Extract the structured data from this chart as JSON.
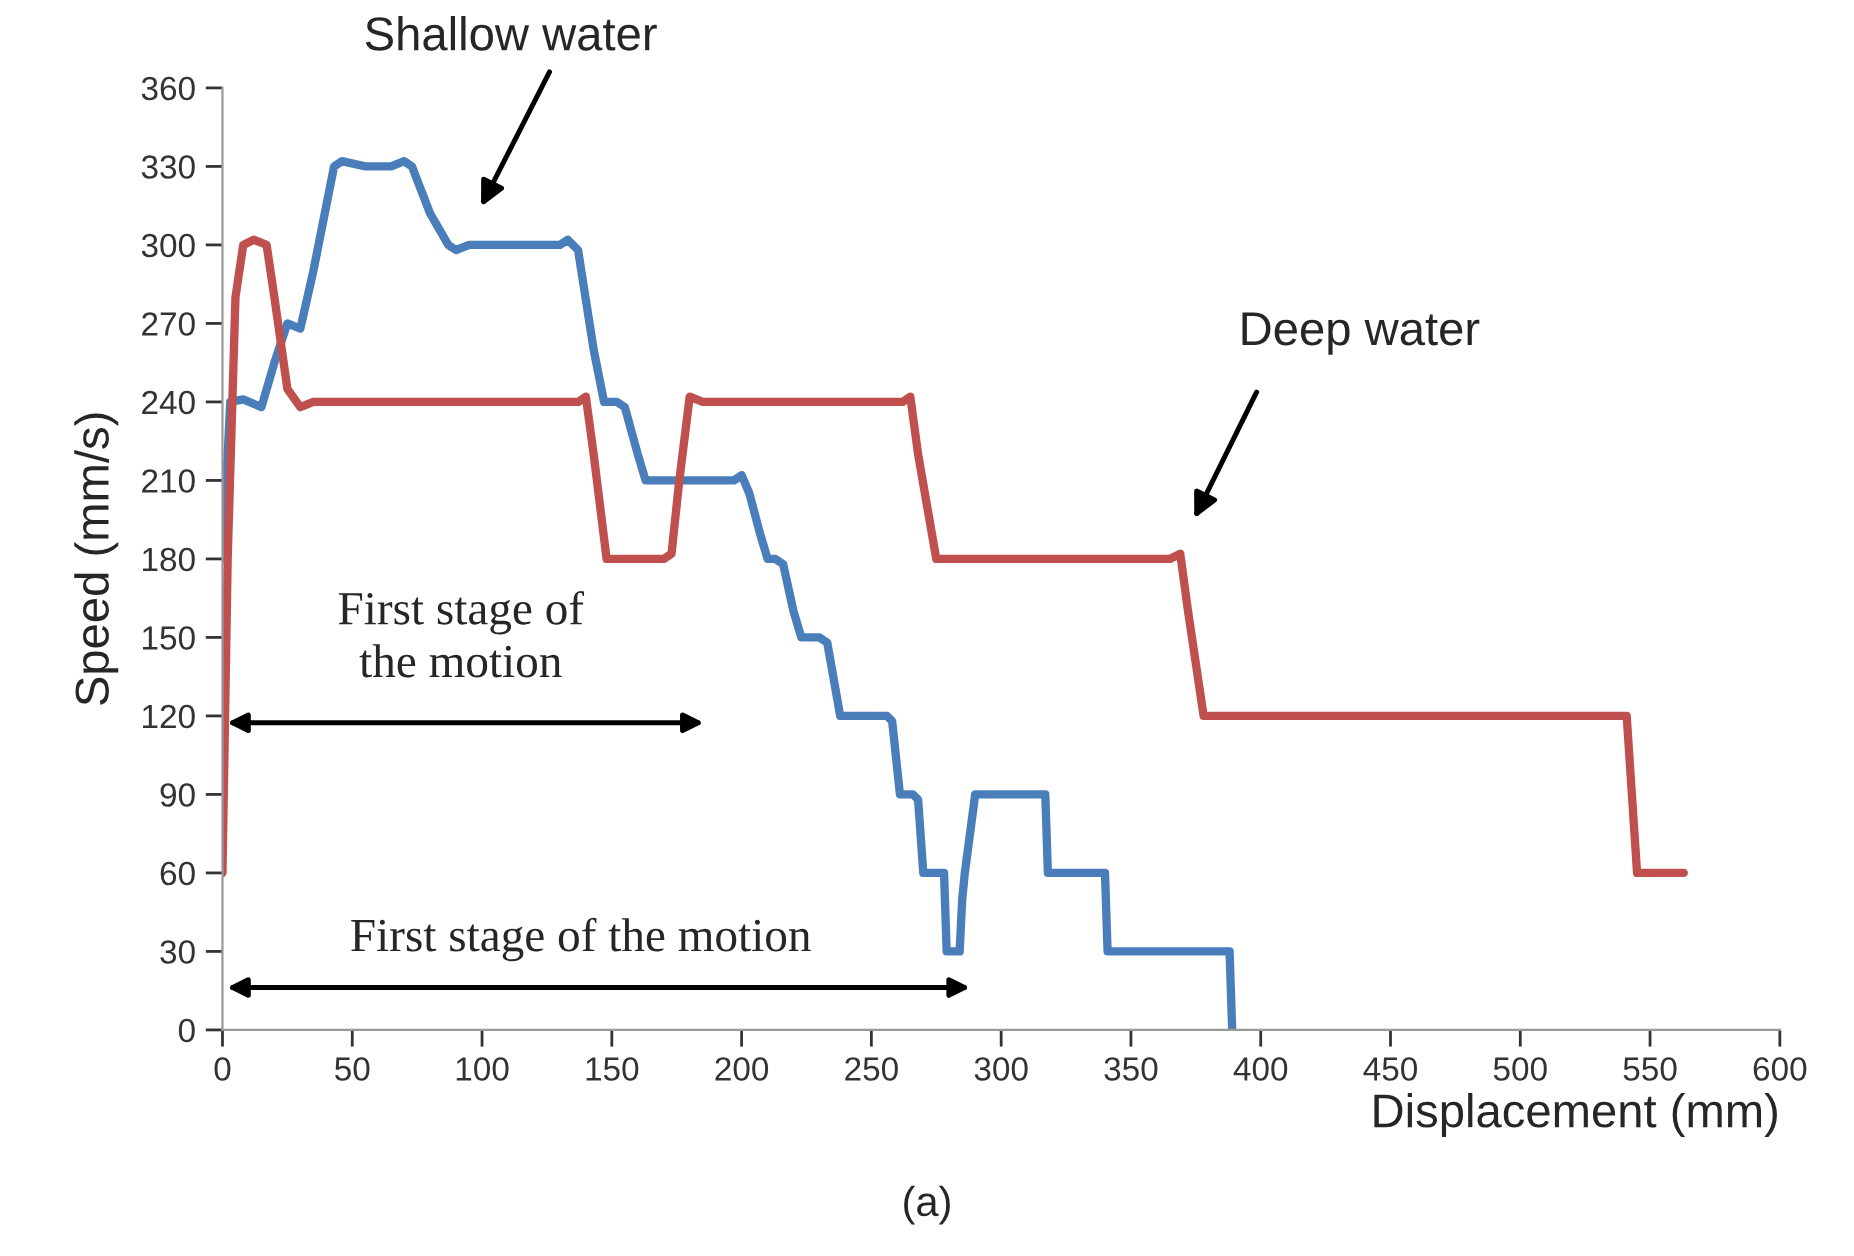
{
  "chart_data": {
    "type": "line",
    "xlabel": "Displacement (mm)",
    "ylabel": "Speed (mm/s)",
    "xlim": [
      0,
      600
    ],
    "xticks": [
      0,
      50,
      100,
      150,
      200,
      250,
      300,
      350,
      400,
      450,
      500,
      550,
      600
    ],
    "ylim": [
      0,
      360
    ],
    "yticks": [
      0,
      30,
      60,
      90,
      120,
      150,
      180,
      210,
      240,
      270,
      300,
      330,
      360
    ],
    "grid": false,
    "legend": false,
    "marker": "none",
    "line_style": "solid",
    "series": [
      {
        "color": "#4a7ebb",
        "x": [
          0,
          3,
          8,
          15,
          20,
          25,
          30,
          35,
          43,
          46,
          55,
          65,
          70,
          73,
          80,
          87,
          90,
          95,
          110,
          125,
          130,
          133,
          137,
          143,
          147,
          152,
          155,
          160,
          163,
          170,
          185,
          197,
          200,
          203,
          207,
          210,
          213,
          216,
          220,
          223,
          230,
          233,
          238,
          245,
          256,
          258,
          261,
          266,
          268,
          270,
          278,
          279,
          284,
          285,
          286,
          290,
          300,
          317,
          318,
          330,
          340,
          341,
          360,
          388,
          389
        ],
        "values": [
          180,
          240,
          241,
          238,
          255,
          270,
          268,
          290,
          330,
          332,
          330,
          330,
          332,
          330,
          312,
          300,
          298,
          300,
          300,
          300,
          300,
          302,
          298,
          260,
          240,
          240,
          238,
          220,
          210,
          210,
          210,
          210,
          212,
          205,
          190,
          180,
          180,
          178,
          160,
          150,
          150,
          148,
          120,
          120,
          120,
          118,
          90,
          90,
          88,
          60,
          60,
          30,
          30,
          50,
          60,
          90,
          90,
          90,
          60,
          60,
          60,
          30,
          30,
          30,
          0
        ]
      },
      {
        "color": "#c0504d",
        "x": [
          0,
          2,
          5,
          8,
          12,
          17,
          20,
          25,
          30,
          35,
          60,
          100,
          137,
          140,
          143,
          148,
          155,
          170,
          173,
          176,
          180,
          185,
          200,
          230,
          262,
          265,
          268,
          275,
          280,
          320,
          365,
          369,
          372,
          378,
          400,
          450,
          500,
          539,
          541,
          545,
          563
        ],
        "values": [
          60,
          180,
          280,
          300,
          302,
          300,
          280,
          245,
          238,
          240,
          240,
          240,
          240,
          242,
          220,
          180,
          180,
          180,
          182,
          210,
          242,
          240,
          240,
          240,
          240,
          242,
          220,
          180,
          180,
          180,
          180,
          182,
          160,
          120,
          120,
          120,
          120,
          120,
          120,
          60,
          60
        ]
      }
    ],
    "annotations": [
      "Shallow water",
      "Deep water",
      "First stage of\nthe motion",
      "First stage of the motion",
      "(a)"
    ]
  }
}
